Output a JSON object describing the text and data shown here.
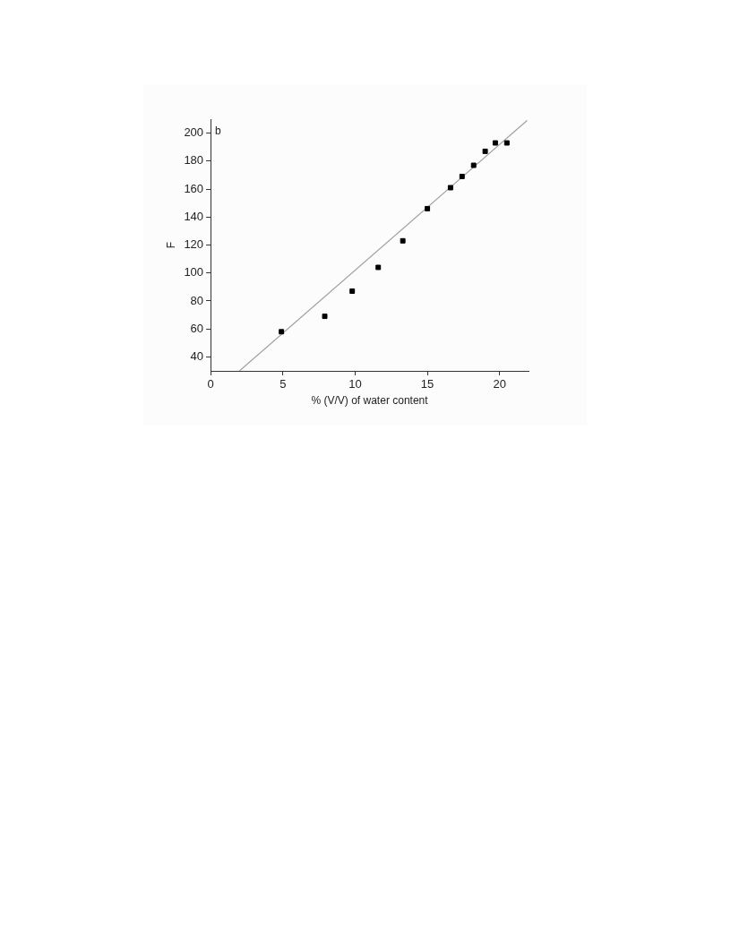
{
  "chart_data": {
    "type": "scatter",
    "xlabel": "% (V/V) of water content",
    "ylabel": "F",
    "annotations": [
      "b"
    ],
    "xlim": [
      0,
      22
    ],
    "xticks": [
      0,
      5,
      10,
      15,
      20
    ],
    "ylim": [
      30,
      210
    ],
    "yticks": [
      40,
      60,
      80,
      100,
      120,
      140,
      160,
      180,
      200
    ],
    "grid": false,
    "legend": false,
    "series": [
      {
        "marker": "square",
        "color": "#000000",
        "x": [
          4.9,
          7.9,
          9.8,
          11.6,
          13.3,
          15.0,
          16.6,
          17.4,
          18.2,
          19.0,
          19.7,
          20.5
        ],
        "values": [
          58,
          69,
          87,
          104,
          123,
          146,
          161,
          169,
          177,
          187,
          193,
          193
        ]
      },
      {
        "type": "line",
        "marker": "none",
        "color": "#a0a0a0",
        "line_style": "solid",
        "x": [
          2.0,
          21.9
        ],
        "values": [
          30,
          209
        ]
      }
    ]
  }
}
